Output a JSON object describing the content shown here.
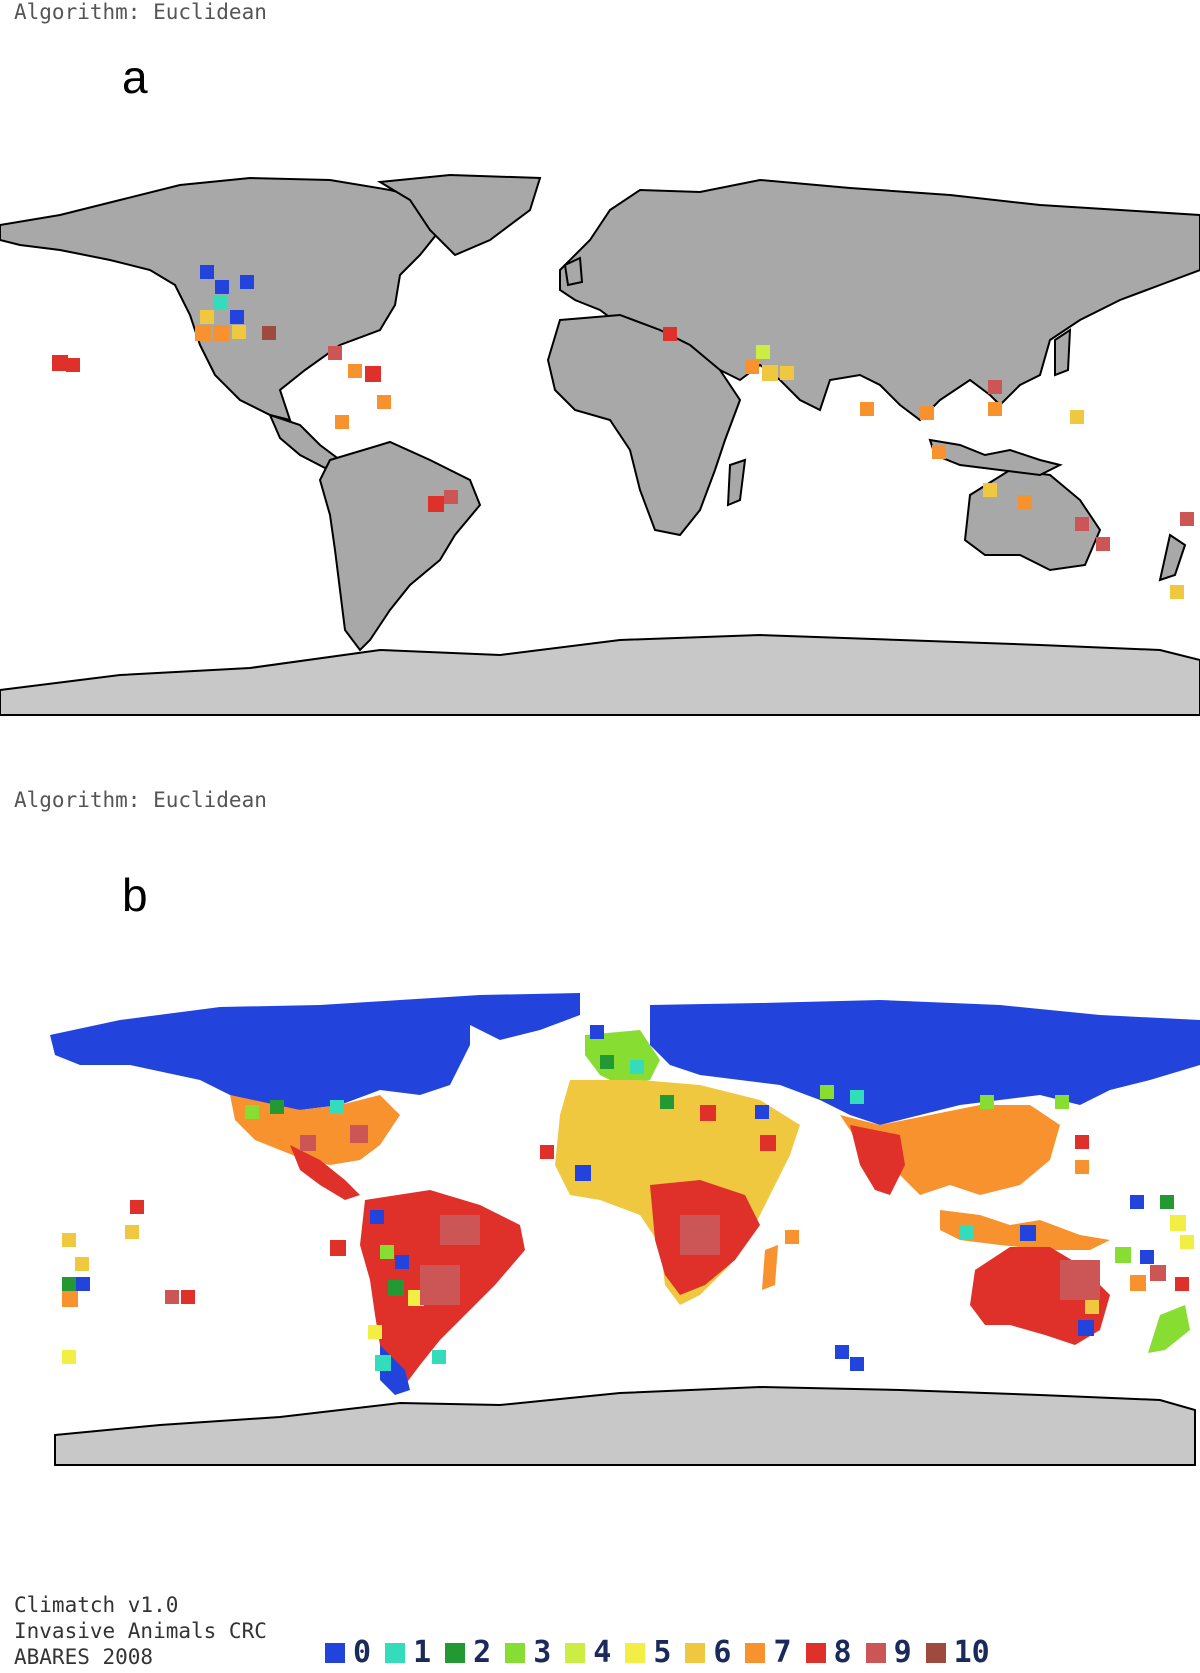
{
  "panel_a": {
    "algorithm_label": "Algorithm: Euclidean",
    "letter": "a"
  },
  "panel_b": {
    "algorithm_label": "Algorithm: Euclidean",
    "letter": "b"
  },
  "credits": [
    "Climatch v1.0",
    "Invasive Animals CRC",
    "ABARES 2008"
  ],
  "legend": [
    {
      "label": "0",
      "color": "#2244dd"
    },
    {
      "label": "1",
      "color": "#33ddbb"
    },
    {
      "label": "2",
      "color": "#229933"
    },
    {
      "label": "3",
      "color": "#88dd33"
    },
    {
      "label": "4",
      "color": "#ccee44"
    },
    {
      "label": "5",
      "color": "#f2ee44"
    },
    {
      "label": "6",
      "color": "#f0c840"
    },
    {
      "label": "7",
      "color": "#f7922e"
    },
    {
      "label": "8",
      "color": "#e0302a"
    },
    {
      "label": "9",
      "color": "#cc5555"
    },
    {
      "label": "10",
      "color": "#9e4a3e"
    }
  ],
  "colors": {
    "land": "#a8a8a8",
    "antarctica": "#c8c8c8",
    "borders": "#000000"
  }
}
